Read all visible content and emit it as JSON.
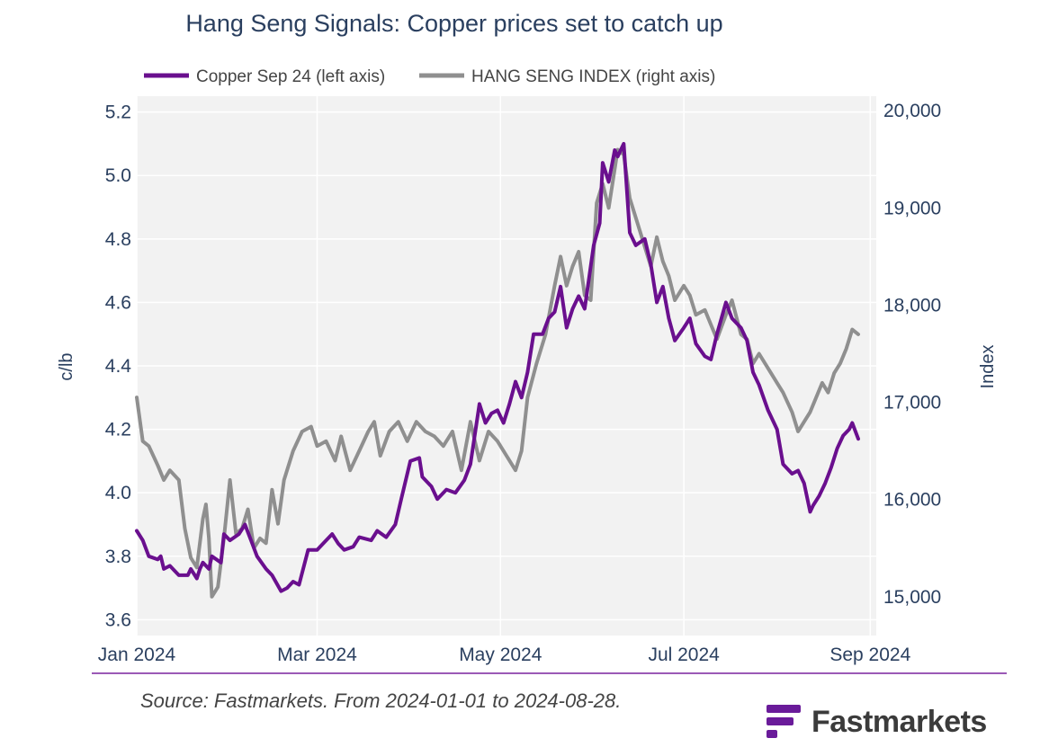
{
  "title": "Hang Seng Signals: Copper prices set to catch up",
  "source_note": "Source: Fastmarkets. From 2024-01-01 to 2024-08-28.",
  "brand": {
    "name": "Fastmarkets",
    "icon": "fastmarkets-logo-mark",
    "color": "#6a1b9a"
  },
  "colors": {
    "copper": "#6a0f8e",
    "index": "#8f8f8f",
    "plot_bg": "#f2f2f2",
    "grid": "#ffffff",
    "divider": "#9b59b6"
  },
  "chart_data": {
    "type": "line",
    "title": "Hang Seng Signals: Copper prices set to catch up",
    "legend_position": "top",
    "grid": true,
    "x_ticks": [
      "Jan 2024",
      "Mar 2024",
      "May 2024",
      "Jul 2024",
      "Sep 2024"
    ],
    "x_tick_dates": [
      "2024-01-01",
      "2024-03-01",
      "2024-05-01",
      "2024-07-01",
      "2024-09-01"
    ],
    "xlim": [
      "2024-01-01",
      "2024-09-03"
    ],
    "y_left": {
      "label": "c/lb",
      "range": [
        3.55,
        5.25
      ],
      "ticks": [
        "3.6",
        "3.8",
        "4.0",
        "4.2",
        "4.4",
        "4.6",
        "4.8",
        "5.0",
        "5.2"
      ]
    },
    "y_right": {
      "label": "Index",
      "range": [
        14600,
        20150
      ],
      "ticks": [
        "15,000",
        "16,000",
        "17,000",
        "18,000",
        "19,000",
        "20,000"
      ]
    },
    "series": [
      {
        "name": "Copper Sep 24 (left axis)",
        "axis": "left",
        "points": [
          [
            "2024-01-01",
            3.88
          ],
          [
            "2024-01-03",
            3.85
          ],
          [
            "2024-01-05",
            3.8
          ],
          [
            "2024-01-08",
            3.79
          ],
          [
            "2024-01-09",
            3.8
          ],
          [
            "2024-01-10",
            3.76
          ],
          [
            "2024-01-12",
            3.77
          ],
          [
            "2024-01-15",
            3.74
          ],
          [
            "2024-01-18",
            3.74
          ],
          [
            "2024-01-19",
            3.76
          ],
          [
            "2024-01-21",
            3.73
          ],
          [
            "2024-01-22",
            3.76
          ],
          [
            "2024-01-23",
            3.78
          ],
          [
            "2024-01-25",
            3.76
          ],
          [
            "2024-01-26",
            3.8
          ],
          [
            "2024-01-29",
            3.78
          ],
          [
            "2024-01-30",
            3.87
          ],
          [
            "2024-02-01",
            3.85
          ],
          [
            "2024-02-04",
            3.87
          ],
          [
            "2024-02-06",
            3.9
          ],
          [
            "2024-02-08",
            3.85
          ],
          [
            "2024-02-10",
            3.8
          ],
          [
            "2024-02-13",
            3.76
          ],
          [
            "2024-02-15",
            3.74
          ],
          [
            "2024-02-18",
            3.69
          ],
          [
            "2024-02-20",
            3.7
          ],
          [
            "2024-02-22",
            3.72
          ],
          [
            "2024-02-24",
            3.71
          ],
          [
            "2024-02-27",
            3.82
          ],
          [
            "2024-03-01",
            3.82
          ],
          [
            "2024-03-03",
            3.84
          ],
          [
            "2024-03-06",
            3.87
          ],
          [
            "2024-03-08",
            3.84
          ],
          [
            "2024-03-10",
            3.82
          ],
          [
            "2024-03-13",
            3.83
          ],
          [
            "2024-03-15",
            3.86
          ],
          [
            "2024-03-19",
            3.85
          ],
          [
            "2024-03-21",
            3.88
          ],
          [
            "2024-03-24",
            3.86
          ],
          [
            "2024-03-27",
            3.9
          ],
          [
            "2024-03-29",
            3.98
          ],
          [
            "2024-04-01",
            4.1
          ],
          [
            "2024-04-04",
            4.11
          ],
          [
            "2024-04-05",
            4.05
          ],
          [
            "2024-04-08",
            4.02
          ],
          [
            "2024-04-10",
            3.98
          ],
          [
            "2024-04-13",
            4.01
          ],
          [
            "2024-04-16",
            4.0
          ],
          [
            "2024-04-19",
            4.04
          ],
          [
            "2024-04-21",
            4.09
          ],
          [
            "2024-04-24",
            4.28
          ],
          [
            "2024-04-26",
            4.22
          ],
          [
            "2024-04-28",
            4.25
          ],
          [
            "2024-04-30",
            4.26
          ],
          [
            "2024-05-02",
            4.22
          ],
          [
            "2024-05-04",
            4.28
          ],
          [
            "2024-05-06",
            4.35
          ],
          [
            "2024-05-08",
            4.3
          ],
          [
            "2024-05-10",
            4.38
          ],
          [
            "2024-05-12",
            4.5
          ],
          [
            "2024-05-15",
            4.5
          ],
          [
            "2024-05-17",
            4.55
          ],
          [
            "2024-05-19",
            4.57
          ],
          [
            "2024-05-21",
            4.65
          ],
          [
            "2024-05-23",
            4.52
          ],
          [
            "2024-05-25",
            4.58
          ],
          [
            "2024-05-27",
            4.62
          ],
          [
            "2024-05-29",
            4.58
          ],
          [
            "2024-06-01",
            4.78
          ],
          [
            "2024-06-03",
            4.85
          ],
          [
            "2024-06-04",
            5.04
          ],
          [
            "2024-06-06",
            4.98
          ],
          [
            "2024-06-08",
            5.08
          ],
          [
            "2024-06-09",
            5.06
          ],
          [
            "2024-06-11",
            5.1
          ],
          [
            "2024-06-13",
            4.82
          ],
          [
            "2024-06-15",
            4.78
          ],
          [
            "2024-06-18",
            4.8
          ],
          [
            "2024-06-20",
            4.72
          ],
          [
            "2024-06-22",
            4.6
          ],
          [
            "2024-06-24",
            4.65
          ],
          [
            "2024-06-26",
            4.55
          ],
          [
            "2024-06-28",
            4.48
          ],
          [
            "2024-07-01",
            4.52
          ],
          [
            "2024-07-03",
            4.55
          ],
          [
            "2024-07-05",
            4.47
          ],
          [
            "2024-07-08",
            4.43
          ],
          [
            "2024-07-10",
            4.42
          ],
          [
            "2024-07-12",
            4.5
          ],
          [
            "2024-07-15",
            4.6
          ],
          [
            "2024-07-17",
            4.55
          ],
          [
            "2024-07-20",
            4.52
          ],
          [
            "2024-07-22",
            4.48
          ],
          [
            "2024-07-24",
            4.38
          ],
          [
            "2024-07-26",
            4.34
          ],
          [
            "2024-07-29",
            4.26
          ],
          [
            "2024-08-01",
            4.2
          ],
          [
            "2024-08-03",
            4.09
          ],
          [
            "2024-08-06",
            4.06
          ],
          [
            "2024-08-08",
            4.07
          ],
          [
            "2024-08-10",
            4.03
          ],
          [
            "2024-08-12",
            3.94
          ],
          [
            "2024-08-13",
            3.96
          ],
          [
            "2024-08-15",
            3.99
          ],
          [
            "2024-08-17",
            4.03
          ],
          [
            "2024-08-19",
            4.08
          ],
          [
            "2024-08-21",
            4.14
          ],
          [
            "2024-08-23",
            4.18
          ],
          [
            "2024-08-25",
            4.2
          ],
          [
            "2024-08-26",
            4.22
          ],
          [
            "2024-08-28",
            4.17
          ]
        ]
      },
      {
        "name": "HANG SENG INDEX (right axis)",
        "axis": "right",
        "points": [
          [
            "2024-01-01",
            17050
          ],
          [
            "2024-01-03",
            16600
          ],
          [
            "2024-01-05",
            16550
          ],
          [
            "2024-01-08",
            16350
          ],
          [
            "2024-01-10",
            16200
          ],
          [
            "2024-01-12",
            16300
          ],
          [
            "2024-01-15",
            16200
          ],
          [
            "2024-01-17",
            15700
          ],
          [
            "2024-01-19",
            15400
          ],
          [
            "2024-01-21",
            15300
          ],
          [
            "2024-01-23",
            15800
          ],
          [
            "2024-01-24",
            15950
          ],
          [
            "2024-01-25",
            15600
          ],
          [
            "2024-01-26",
            15000
          ],
          [
            "2024-01-28",
            15100
          ],
          [
            "2024-01-30",
            15600
          ],
          [
            "2024-02-01",
            16200
          ],
          [
            "2024-02-03",
            15650
          ],
          [
            "2024-02-05",
            15700
          ],
          [
            "2024-02-07",
            15900
          ],
          [
            "2024-02-09",
            15500
          ],
          [
            "2024-02-11",
            15600
          ],
          [
            "2024-02-13",
            15550
          ],
          [
            "2024-02-15",
            16100
          ],
          [
            "2024-02-17",
            15750
          ],
          [
            "2024-02-19",
            16200
          ],
          [
            "2024-02-22",
            16500
          ],
          [
            "2024-02-25",
            16700
          ],
          [
            "2024-02-28",
            16750
          ],
          [
            "2024-03-01",
            16550
          ],
          [
            "2024-03-04",
            16600
          ],
          [
            "2024-03-07",
            16400
          ],
          [
            "2024-03-09",
            16650
          ],
          [
            "2024-03-12",
            16300
          ],
          [
            "2024-03-15",
            16500
          ],
          [
            "2024-03-18",
            16700
          ],
          [
            "2024-03-20",
            16800
          ],
          [
            "2024-03-22",
            16450
          ],
          [
            "2024-03-25",
            16700
          ],
          [
            "2024-03-28",
            16800
          ],
          [
            "2024-03-31",
            16600
          ],
          [
            "2024-04-03",
            16800
          ],
          [
            "2024-04-06",
            16700
          ],
          [
            "2024-04-09",
            16650
          ],
          [
            "2024-04-12",
            16550
          ],
          [
            "2024-04-15",
            16700
          ],
          [
            "2024-04-18",
            16300
          ],
          [
            "2024-04-21",
            16800
          ],
          [
            "2024-04-24",
            16400
          ],
          [
            "2024-04-27",
            16700
          ],
          [
            "2024-04-30",
            16600
          ],
          [
            "2024-05-03",
            16450
          ],
          [
            "2024-05-06",
            16300
          ],
          [
            "2024-05-08",
            16500
          ],
          [
            "2024-05-10",
            17050
          ],
          [
            "2024-05-13",
            17400
          ],
          [
            "2024-05-16",
            17700
          ],
          [
            "2024-05-19",
            18200
          ],
          [
            "2024-05-21",
            18500
          ],
          [
            "2024-05-23",
            18200
          ],
          [
            "2024-05-25",
            18400
          ],
          [
            "2024-05-27",
            18550
          ],
          [
            "2024-05-29",
            18100
          ],
          [
            "2024-05-31",
            18050
          ],
          [
            "2024-06-02",
            19050
          ],
          [
            "2024-06-04",
            19250
          ],
          [
            "2024-06-06",
            19000
          ],
          [
            "2024-06-08",
            19400
          ],
          [
            "2024-06-09",
            19600
          ],
          [
            "2024-06-11",
            19550
          ],
          [
            "2024-06-13",
            19100
          ],
          [
            "2024-06-15",
            18900
          ],
          [
            "2024-06-18",
            18600
          ],
          [
            "2024-06-20",
            18400
          ],
          [
            "2024-06-22",
            18700
          ],
          [
            "2024-06-24",
            18450
          ],
          [
            "2024-06-26",
            18300
          ],
          [
            "2024-06-28",
            18050
          ],
          [
            "2024-07-01",
            18200
          ],
          [
            "2024-07-03",
            18100
          ],
          [
            "2024-07-05",
            17900
          ],
          [
            "2024-07-08",
            17950
          ],
          [
            "2024-07-10",
            17800
          ],
          [
            "2024-07-12",
            17650
          ],
          [
            "2024-07-15",
            17900
          ],
          [
            "2024-07-17",
            18050
          ],
          [
            "2024-07-20",
            17700
          ],
          [
            "2024-07-22",
            17650
          ],
          [
            "2024-07-24",
            17400
          ],
          [
            "2024-07-26",
            17500
          ],
          [
            "2024-07-29",
            17350
          ],
          [
            "2024-08-01",
            17200
          ],
          [
            "2024-08-03",
            17100
          ],
          [
            "2024-08-06",
            16900
          ],
          [
            "2024-08-08",
            16700
          ],
          [
            "2024-08-10",
            16800
          ],
          [
            "2024-08-12",
            16900
          ],
          [
            "2024-08-14",
            17050
          ],
          [
            "2024-08-16",
            17200
          ],
          [
            "2024-08-18",
            17100
          ],
          [
            "2024-08-20",
            17300
          ],
          [
            "2024-08-22",
            17400
          ],
          [
            "2024-08-24",
            17550
          ],
          [
            "2024-08-26",
            17750
          ],
          [
            "2024-08-28",
            17700
          ]
        ]
      }
    ]
  }
}
